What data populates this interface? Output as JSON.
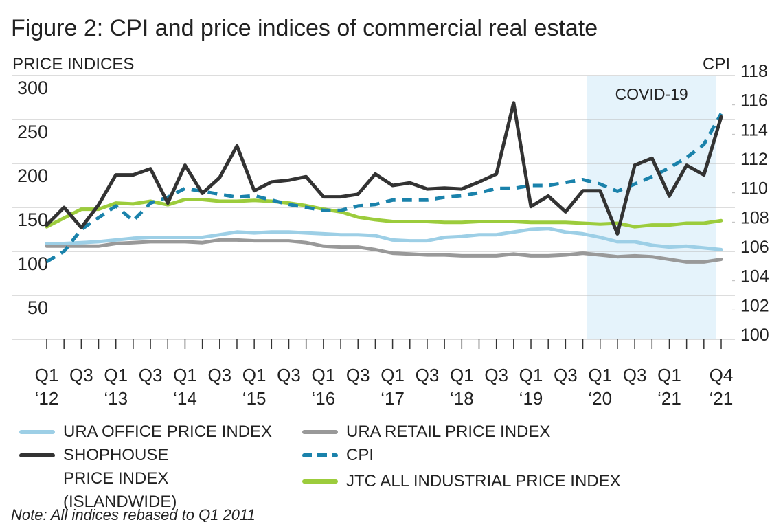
{
  "chart_data": {
    "type": "line",
    "title": "Figure 2: CPI and price indices of commercial real estate",
    "y_label": "PRICE INDICES",
    "y2_label": "CPI",
    "note": "Note: All indices rebased to Q1 2011",
    "annotation": {
      "text": "COVID-19",
      "span": [
        31.25,
        38.7
      ]
    },
    "categories": [
      "Q1 ‘12",
      null,
      "Q3",
      null,
      "Q1 ‘13",
      null,
      "Q3",
      null,
      "Q1 ‘14",
      null,
      "Q3",
      null,
      "Q1 ‘15",
      null,
      "Q3",
      null,
      "Q1 ‘16",
      null,
      "Q3",
      null,
      "Q1 ‘17",
      null,
      "Q3",
      null,
      "Q1 ‘18",
      null,
      "Q3",
      null,
      "Q1 ‘19",
      null,
      "Q3",
      null,
      "Q1 ‘20",
      null,
      "Q3",
      null,
      "Q1 ‘21",
      null,
      null,
      "Q4 ‘21"
    ],
    "ylim": [
      0,
      300
    ],
    "yticks": [
      50,
      100,
      150,
      200,
      250,
      300
    ],
    "y2lim": [
      100,
      118
    ],
    "y2ticks": [
      100,
      102,
      104,
      106,
      108,
      110,
      112,
      114,
      116,
      118
    ],
    "grid": true,
    "series": [
      {
        "name": "URA OFFICE PRICE INDEX",
        "color": "#9dcfe6",
        "values": [
          109,
          109,
          110,
          111,
          113,
          115,
          116,
          116,
          116,
          116,
          119,
          122,
          121,
          122,
          122,
          121,
          120,
          119,
          119,
          118,
          113,
          112,
          112,
          116,
          117,
          119,
          119,
          122,
          125,
          126,
          122,
          120,
          116,
          111,
          111,
          107,
          105,
          106,
          104,
          102
        ]
      },
      {
        "name": "URA RETAIL PRICE INDEX",
        "color": "#999999",
        "values": [
          106,
          106,
          106,
          106,
          109,
          110,
          111,
          111,
          111,
          110,
          113,
          113,
          112,
          112,
          112,
          110,
          106,
          105,
          105,
          102,
          98,
          97,
          96,
          96,
          95,
          95,
          95,
          97,
          95,
          95,
          96,
          98,
          96,
          94,
          95,
          94,
          91,
          88,
          88,
          91
        ]
      },
      {
        "name": "SHOPHOUSE PRICE INDEX (ISLANDWIDE)",
        "color": "#333333",
        "values": [
          130,
          150,
          127,
          153,
          187,
          187,
          194,
          155,
          198,
          166,
          184,
          220,
          169,
          179,
          181,
          185,
          162,
          162,
          165,
          188,
          175,
          178,
          171,
          172,
          171,
          179,
          188,
          269,
          151,
          163,
          145,
          169,
          169,
          120,
          198,
          206,
          163,
          198,
          187,
          253
        ]
      },
      {
        "name": "CPI",
        "color": "#1a82ab",
        "dashed": true,
        "axis": "y2",
        "values": [
          105.3,
          106.0,
          107.5,
          108.3,
          109.1,
          108.1,
          109.3,
          109.7,
          110.3,
          110.1,
          109.9,
          109.7,
          109.8,
          109.5,
          109.2,
          109.0,
          108.8,
          108.8,
          109.1,
          109.2,
          109.5,
          109.5,
          109.5,
          109.7,
          109.8,
          110.0,
          110.3,
          110.3,
          110.5,
          110.5,
          110.7,
          110.9,
          110.6,
          110.1,
          110.6,
          111.1,
          111.7,
          112.4,
          113.3,
          115.4
        ]
      },
      {
        "name": "JTC ALL INDUSTRIAL PRICE INDEX",
        "color": "#9ccc3c",
        "values": [
          128,
          138,
          148,
          148,
          155,
          154,
          157,
          153,
          159,
          159,
          157,
          157,
          158,
          157,
          155,
          152,
          148,
          145,
          139,
          136,
          134,
          134,
          134,
          133,
          133,
          134,
          134,
          134,
          133,
          133,
          133,
          132,
          131,
          132,
          128,
          130,
          130,
          132,
          132,
          135
        ]
      }
    ]
  }
}
